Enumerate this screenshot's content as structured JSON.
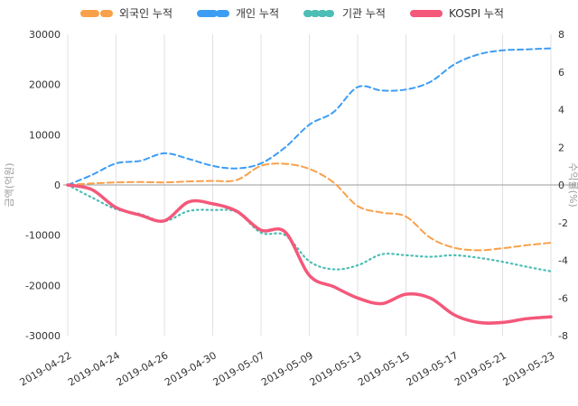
{
  "legend": {
    "items": [
      {
        "label": "외국인 누적",
        "color": "#f9a04a",
        "dash": "13 9"
      },
      {
        "label": "개인 누적",
        "color": "#3d9df3",
        "dash": "15 6"
      },
      {
        "label": "기관 누적",
        "color": "#4dbdb5",
        "dash": "2 6"
      },
      {
        "label": "KOSPI 누적",
        "color": "#f4587a",
        "dash": "none"
      }
    ]
  },
  "chart_data": {
    "type": "line",
    "title": "",
    "left_axis_label": "금액(억원)",
    "right_axis_label": "수익률(%)",
    "left_ylim": [
      -30000,
      30000
    ],
    "right_ylim": [
      -8,
      8
    ],
    "left_ticks": [
      30000,
      20000,
      10000,
      0,
      -10000,
      -20000,
      -30000
    ],
    "right_ticks": [
      8,
      6,
      4,
      2,
      0,
      -2,
      -4,
      -6,
      -8
    ],
    "x": [
      "2019-04-22",
      "2019-04-23",
      "2019-04-24",
      "2019-04-25",
      "2019-04-26",
      "2019-04-29",
      "2019-04-30",
      "2019-05-02",
      "2019-05-07",
      "2019-05-08",
      "2019-05-09",
      "2019-05-10",
      "2019-05-13",
      "2019-05-14",
      "2019-05-15",
      "2019-05-16",
      "2019-05-17",
      "2019-05-20",
      "2019-05-21",
      "2019-05-22",
      "2019-05-23"
    ],
    "x_tick_indices": [
      0,
      2,
      4,
      6,
      8,
      10,
      12,
      14,
      16,
      18,
      20
    ],
    "x_tick_labels": [
      "2019-04-22",
      "2019-04-24",
      "2019-04-26",
      "2019-04-30",
      "2019-05-07",
      "2019-05-09",
      "2019-05-13",
      "2019-05-15",
      "2019-05-17",
      "2019-05-21",
      "2019-05-23"
    ],
    "grid": "vertical-only",
    "legend_position": "top",
    "series": [
      {
        "name": "외국인 누적",
        "axis": "left",
        "color": "#f9a04a",
        "dash": "7 4",
        "width": 2,
        "values": [
          0,
          300,
          500,
          600,
          500,
          700,
          800,
          1000,
          3800,
          4200,
          3200,
          500,
          -4200,
          -5500,
          -6300,
          -10500,
          -12500,
          -13000,
          -12600,
          -12000,
          -11500
        ]
      },
      {
        "name": "개인 누적",
        "axis": "left",
        "color": "#3d9df3",
        "dash": "6 4",
        "width": 2,
        "values": [
          0,
          2000,
          4300,
          4800,
          6300,
          5200,
          3800,
          3300,
          4300,
          7500,
          12000,
          14500,
          19500,
          18800,
          19000,
          20500,
          24000,
          26000,
          26800,
          27000,
          27200
        ]
      },
      {
        "name": "기관 누적",
        "axis": "left",
        "color": "#4dbdb5",
        "dash": "1.5 3.8",
        "width": 2.2,
        "values": [
          0,
          -2500,
          -4800,
          -5800,
          -7200,
          -5200,
          -5000,
          -5400,
          -9500,
          -10000,
          -15200,
          -16800,
          -16000,
          -13800,
          -14000,
          -14300,
          -14000,
          -14500,
          -15300,
          -16300,
          -17200
        ]
      },
      {
        "name": "KOSPI 누적",
        "axis": "right",
        "color": "#f4587a",
        "dash": "none",
        "width": 3.5,
        "values": [
          0,
          -0.25,
          -1.2,
          -1.6,
          -1.9,
          -0.9,
          -1.0,
          -1.4,
          -2.4,
          -2.5,
          -4.8,
          -5.4,
          -6.0,
          -6.3,
          -5.8,
          -6.0,
          -6.9,
          -7.3,
          -7.3,
          -7.1,
          -7.0
        ]
      }
    ],
    "colors": {
      "gridline": "#e1e1e6",
      "zero_line": "#999999",
      "tick_label": "#333333",
      "axis_label": "#999999"
    }
  }
}
